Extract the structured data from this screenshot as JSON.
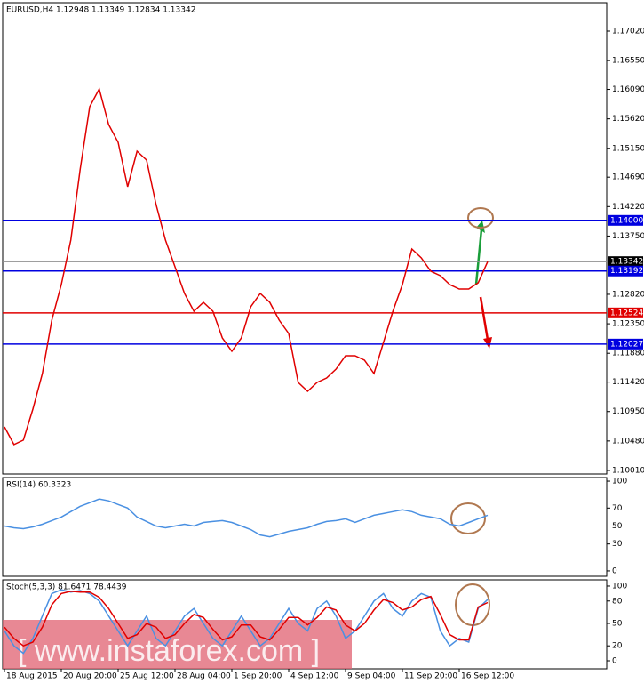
{
  "chart_data": [
    {
      "type": "line",
      "title": "EURUSD,H4  1.12948 1.13349 1.12834 1.13342",
      "categories": [
        "18 Aug 2015",
        null,
        null,
        null,
        null,
        null,
        "20 Aug 20:00",
        null,
        null,
        null,
        null,
        null,
        "25 Aug 12:00",
        null,
        null,
        null,
        null,
        null,
        "28 Aug 04:00",
        null,
        null,
        null,
        null,
        null,
        "1 Sep 20:00",
        null,
        null,
        null,
        null,
        null,
        "4 Sep 12:00",
        null,
        null,
        null,
        null,
        null,
        "9 Sep 04:00",
        null,
        null,
        null,
        null,
        null,
        "11 Sep 20:00",
        null,
        null,
        null,
        null,
        null,
        "16 Sep 12:00",
        null,
        null,
        null
      ],
      "series": [
        {
          "color": "#e00000",
          "values": [
            1.10705,
            1.10422,
            1.10493,
            1.10989,
            1.11557,
            1.12408,
            1.12976,
            1.13685,
            1.14821,
            1.15814,
            1.16098,
            1.1553,
            1.15246,
            1.14537,
            1.15104,
            1.14962,
            1.14253,
            1.13685,
            1.1326,
            1.12834,
            1.1255,
            1.12692,
            1.1255,
            1.12124,
            1.11912,
            1.12124,
            1.12621,
            1.12834,
            1.12692,
            1.12408,
            1.12195,
            1.11415,
            1.11273,
            1.11415,
            1.11486,
            1.11628,
            1.11841,
            1.11841,
            1.1177,
            1.11557,
            1.12053,
            1.1255,
            1.12976,
            1.13543,
            1.13402,
            1.13189,
            1.13118,
            1.12976,
            1.12905,
            1.12905,
            1.13004,
            1.13342
          ]
        }
      ],
      "ylim": [
        1.09953,
        1.17474
      ],
      "yticks": [
        {
          "value": 1.1702,
          "label": "1.17020"
        },
        {
          "value": 1.1655,
          "label": "1.16550"
        },
        {
          "value": 1.1609,
          "label": "1.16090"
        },
        {
          "value": 1.1562,
          "label": "1.15620"
        },
        {
          "value": 1.1515,
          "label": "1.15150"
        },
        {
          "value": 1.1469,
          "label": "1.14690"
        },
        {
          "value": 1.1422,
          "label": "1.14220"
        },
        {
          "value": 1.1375,
          "label": "1.13750"
        },
        {
          "value": 1.1282,
          "label": "1.12820"
        },
        {
          "value": 1.1235,
          "label": "1.12350"
        },
        {
          "value": 1.1188,
          "label": "1.11880"
        },
        {
          "value": 1.1142,
          "label": "1.11420"
        },
        {
          "value": 1.1095,
          "label": "1.10950"
        },
        {
          "value": 1.1048,
          "label": "1.10480"
        },
        {
          "value": 1.1001,
          "label": "1.10010"
        }
      ],
      "levels": [
        {
          "value": 1.14,
          "label": "1.14000",
          "color": "#0000e0"
        },
        {
          "value": 1.13342,
          "label": "1.13342",
          "color": "#909090"
        },
        {
          "value": 1.13192,
          "label": "1.13192",
          "color": "#0000e0"
        },
        {
          "value": 1.12524,
          "label": "1.12524",
          "color": "#e00000"
        },
        {
          "value": 1.12027,
          "label": "1.12027",
          "color": "#0000e0"
        }
      ]
    },
    {
      "type": "line",
      "title": "RSI(14) 60.3323",
      "series": [
        {
          "color": "#4a90e2",
          "values": [
            50,
            48,
            47,
            49,
            52,
            56,
            60,
            66,
            72,
            76,
            80,
            78,
            74,
            70,
            60,
            55,
            50,
            48,
            50,
            52,
            50,
            54,
            55,
            56,
            54,
            50,
            46,
            40,
            38,
            41,
            44,
            46,
            48,
            52,
            55,
            56,
            58,
            54,
            58,
            62,
            64,
            66,
            68,
            66,
            62,
            60,
            58,
            52,
            50,
            54,
            58,
            62
          ]
        }
      ],
      "ylim": [
        -6,
        104
      ],
      "yticks": [
        100,
        70,
        50,
        30,
        0
      ]
    },
    {
      "type": "line",
      "title": "Stoch(5,3,3) 81.6471 78.4439",
      "series": [
        {
          "color": "#4a90e2",
          "values": [
            40,
            20,
            10,
            30,
            60,
            90,
            95,
            92,
            94,
            90,
            80,
            60,
            40,
            20,
            40,
            60,
            30,
            20,
            40,
            60,
            70,
            50,
            30,
            20,
            40,
            60,
            40,
            20,
            30,
            50,
            70,
            50,
            40,
            70,
            80,
            60,
            30,
            40,
            60,
            80,
            90,
            70,
            60,
            80,
            90,
            85,
            40,
            20,
            30,
            25,
            70,
            82
          ]
        },
        {
          "color": "#e00000",
          "values": [
            45,
            30,
            20,
            25,
            45,
            75,
            90,
            93,
            92,
            92,
            85,
            70,
            50,
            30,
            35,
            50,
            45,
            30,
            35,
            50,
            62,
            58,
            42,
            28,
            32,
            48,
            48,
            32,
            28,
            42,
            58,
            58,
            48,
            58,
            72,
            68,
            48,
            40,
            50,
            68,
            82,
            78,
            68,
            72,
            82,
            86,
            62,
            35,
            28,
            28,
            72,
            78
          ]
        }
      ],
      "ylim": [
        -10.7,
        108.3
      ],
      "yticks": [
        100,
        80,
        50,
        20,
        0
      ]
    }
  ],
  "watermark": "[ www.instaforex.com ]"
}
